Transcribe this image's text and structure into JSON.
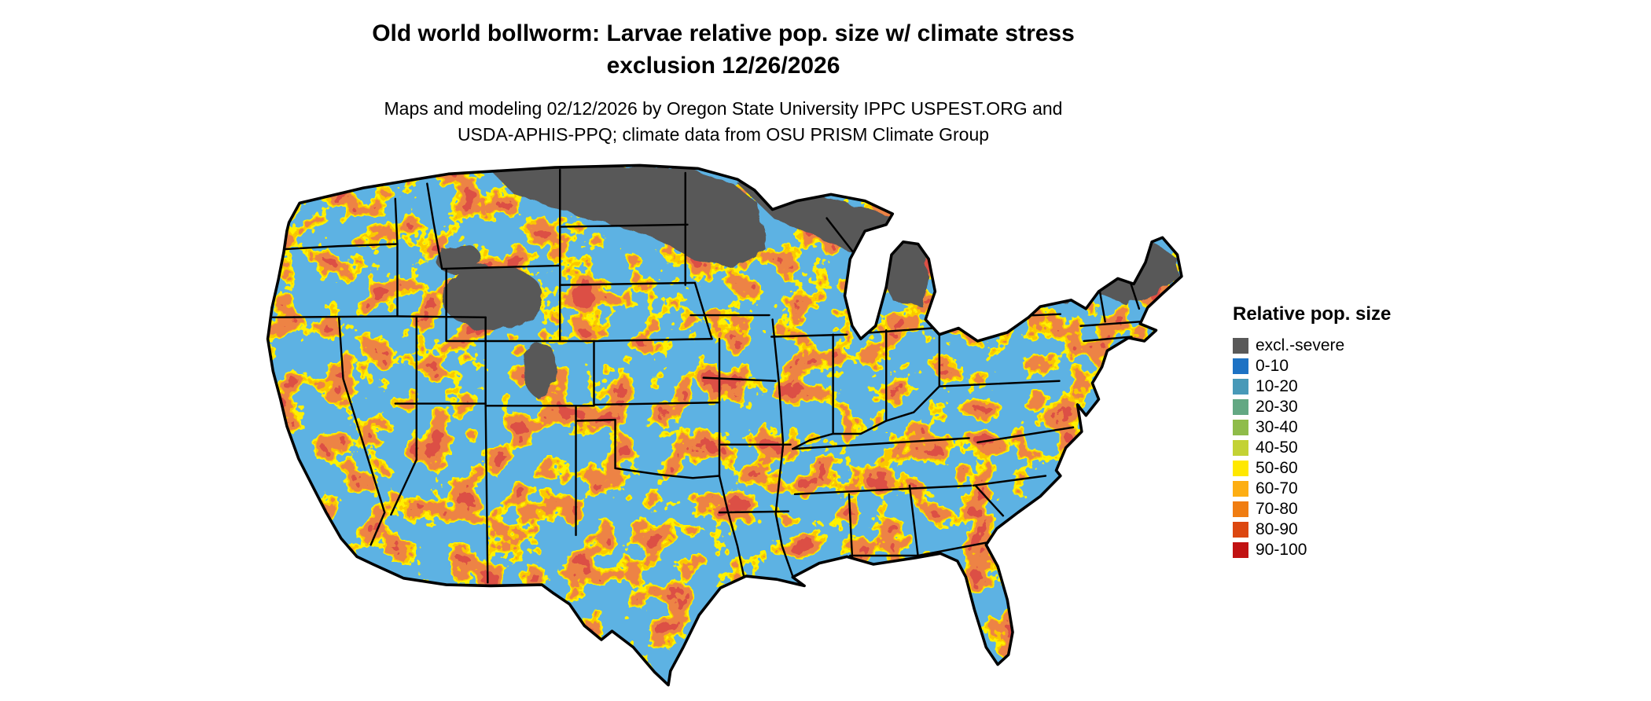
{
  "title": {
    "line1": "Old world bollworm: Larvae relative pop. size w/ climate stress",
    "line2": "exclusion 12/26/2026"
  },
  "subtitle": {
    "line1": "Maps and modeling 02/12/2026 by Oregon State University IPPC USPEST.ORG and",
    "line2": "USDA-APHIS-PPQ; climate data from OSU PRISM Climate Group"
  },
  "legend": {
    "title": "Relative pop. size",
    "items": [
      {
        "label": "excl.-severe",
        "color": "#595959"
      },
      {
        "label": "0-10",
        "color": "#1d72c4"
      },
      {
        "label": "10-20",
        "color": "#4899b8"
      },
      {
        "label": "20-30",
        "color": "#63a883"
      },
      {
        "label": "30-40",
        "color": "#8fbc4a"
      },
      {
        "label": "40-50",
        "color": "#c3d235"
      },
      {
        "label": "50-60",
        "color": "#ffe800"
      },
      {
        "label": "60-70",
        "color": "#fdae13"
      },
      {
        "label": "70-80",
        "color": "#f07d12"
      },
      {
        "label": "80-90",
        "color": "#dc4710"
      },
      {
        "label": "90-100",
        "color": "#c11212"
      }
    ]
  },
  "map": {
    "base_color": "#1d72c4",
    "excluded_color": "#595959",
    "border_color": "#000000"
  }
}
